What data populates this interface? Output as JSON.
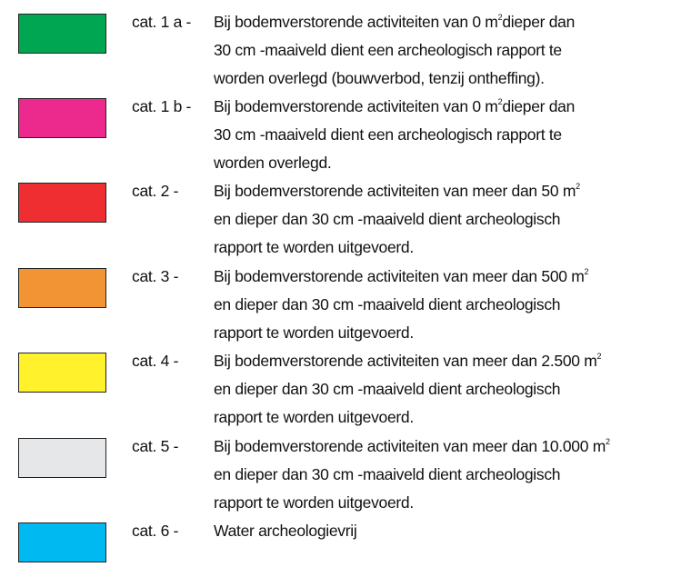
{
  "legend": [
    {
      "label": "cat. 1 a -",
      "color": "#00a651",
      "lines": [
        {
          "pre": "Bij bodemverstorende activiteiten van 0 m",
          "sup": "2",
          "post": "dieper dan"
        },
        {
          "pre": "30 cm -maaiveld dient een archeologisch rapport te",
          "sup": "",
          "post": ""
        },
        {
          "pre": "worden overlegd (bouwverbod, tenzij ontheffing).",
          "sup": "",
          "post": ""
        }
      ]
    },
    {
      "label": "cat. 1 b -",
      "color": "#ec2a8e",
      "lines": [
        {
          "pre": "Bij bodemverstorende activiteiten van 0 m",
          "sup": "2",
          "post": "dieper dan"
        },
        {
          "pre": "30 cm -maaiveld dient een archeologisch rapport te",
          "sup": "",
          "post": ""
        },
        {
          "pre": "worden overlegd.",
          "sup": "",
          "post": ""
        }
      ]
    },
    {
      "label": "cat. 2 -",
      "color": "#ee2e31",
      "lines": [
        {
          "pre": "Bij bodemverstorende activiteiten van meer dan 50 m",
          "sup": "2",
          "post": ""
        },
        {
          "pre": "en dieper dan 30 cm -maaiveld dient archeologisch",
          "sup": "",
          "post": ""
        },
        {
          "pre": "rapport te worden uitgevoerd.",
          "sup": "",
          "post": ""
        }
      ]
    },
    {
      "label": "cat. 3 -",
      "color": "#f29433",
      "lines": [
        {
          "pre": "Bij bodemverstorende activiteiten van meer dan 500 m",
          "sup": "2",
          "post": ""
        },
        {
          "pre": "en dieper dan 30 cm -maaiveld dient archeologisch",
          "sup": "",
          "post": ""
        },
        {
          "pre": "rapport te worden uitgevoerd.",
          "sup": "",
          "post": ""
        }
      ]
    },
    {
      "label": "cat. 4 -",
      "color": "#fff22d",
      "lines": [
        {
          "pre": "Bij bodemverstorende activiteiten van meer dan 2.500 m",
          "sup": "2",
          "post": ""
        },
        {
          "pre": "en dieper dan 30 cm -maaiveld dient archeologisch",
          "sup": "",
          "post": ""
        },
        {
          "pre": "rapport te worden uitgevoerd.",
          "sup": "",
          "post": ""
        }
      ]
    },
    {
      "label": "cat. 5 -",
      "color": "#e6e7e9",
      "lines": [
        {
          "pre": "Bij bodemverstorende activiteiten van meer dan 10.000 m",
          "sup": "2",
          "post": ""
        },
        {
          "pre": "en dieper dan 30 cm -maaiveld dient archeologisch",
          "sup": "",
          "post": ""
        },
        {
          "pre": "rapport te worden uitgevoerd.",
          "sup": "",
          "post": ""
        }
      ]
    },
    {
      "label": "cat. 6 -",
      "color": "#00b9f1",
      "lines": [
        {
          "pre": "Water archeologievrij",
          "sup": "",
          "post": ""
        }
      ]
    }
  ]
}
